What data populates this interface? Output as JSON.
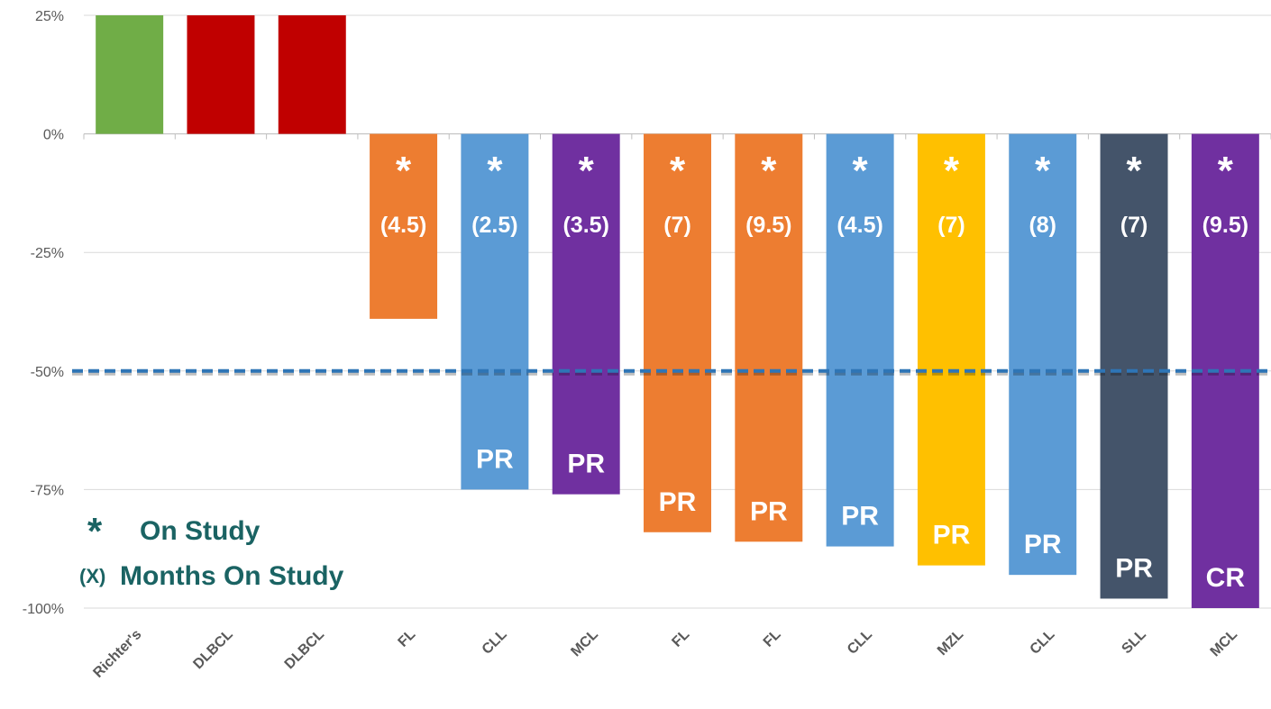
{
  "chart_data": {
    "type": "bar",
    "categories": [
      "Richter's",
      "DLBCL",
      "DLBCL",
      "FL",
      "CLL",
      "MCL",
      "FL",
      "FL",
      "CLL",
      "MZL",
      "CLL",
      "SLL",
      "MCL"
    ],
    "values": [
      25,
      25,
      25,
      -39,
      -75,
      -76,
      -84,
      -86,
      -87,
      -91,
      -93,
      -98,
      -100
    ],
    "colors": [
      "#70ad47",
      "#c00000",
      "#c00000",
      "#ed7d31",
      "#5b9bd5",
      "#7030a0",
      "#ed7d31",
      "#ed7d31",
      "#5b9bd5",
      "#ffc000",
      "#5b9bd5",
      "#44546a",
      "#7030a0"
    ],
    "status_labels": [
      null,
      null,
      null,
      "*",
      "*",
      "*",
      "*",
      "*",
      "*",
      "*",
      "*",
      "*",
      "*"
    ],
    "months_labels": [
      null,
      null,
      null,
      "(4.5)",
      "(2.5)",
      "(3.5)",
      "(7)",
      "(9.5)",
      "(4.5)",
      "(7)",
      "(8)",
      "(7)",
      "(9.5)"
    ],
    "response_labels": [
      null,
      null,
      null,
      null,
      "PR",
      "PR",
      "PR",
      "PR",
      "PR",
      "PR",
      "PR",
      "PR",
      "CR"
    ],
    "ylim": [
      -100,
      25
    ],
    "yticks": [
      {
        "value": 25,
        "label": "25%"
      },
      {
        "value": 0,
        "label": "0%"
      },
      {
        "value": -25,
        "label": "-25%"
      },
      {
        "value": -50,
        "label": "-50%"
      },
      {
        "value": -75,
        "label": "-75%"
      },
      {
        "value": -100,
        "label": "-100%"
      }
    ],
    "grid": true,
    "reference_line": {
      "value": -50,
      "color": "#2e75b6"
    },
    "legend": {
      "star_symbol": "*",
      "star_text": "On Study",
      "months_symbol": "(X)",
      "months_text": "Months On Study"
    }
  }
}
